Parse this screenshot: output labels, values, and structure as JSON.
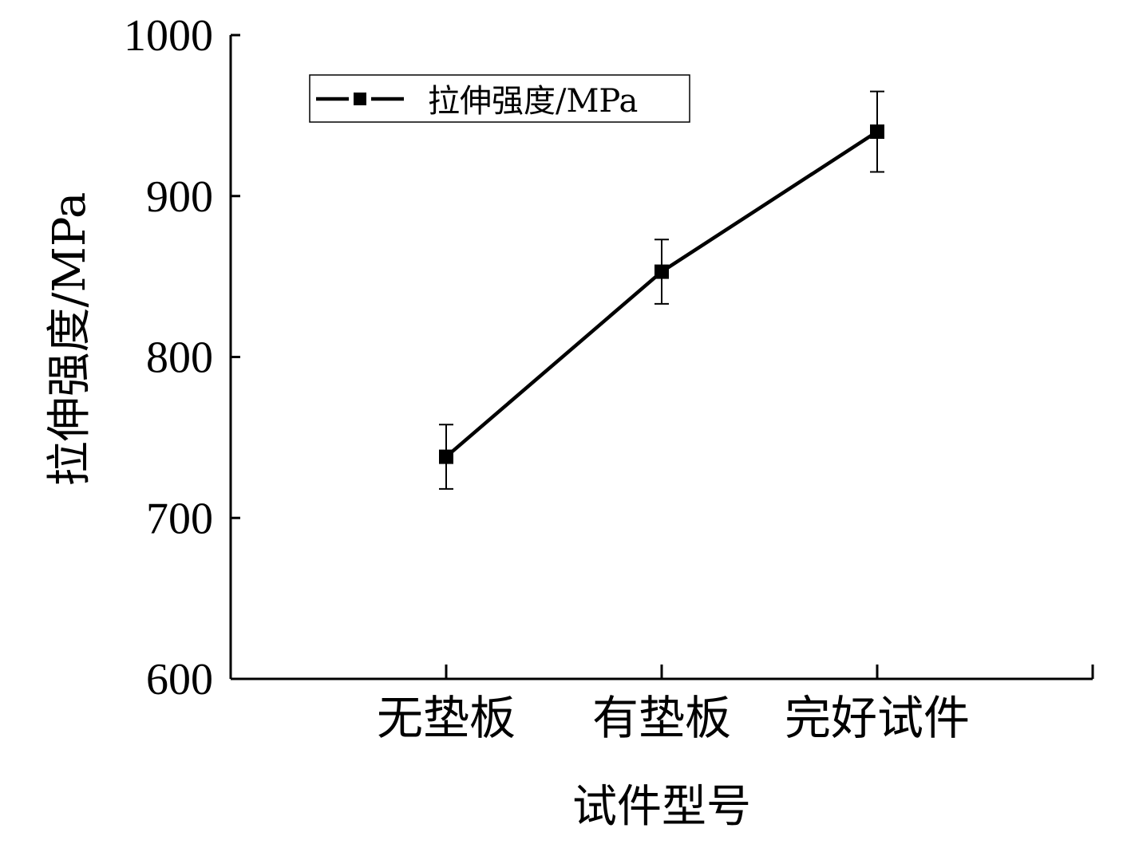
{
  "chart_data": {
    "type": "line",
    "categories": [
      "无垫板",
      "有垫板",
      "完好试件"
    ],
    "series": [
      {
        "name": "拉伸强度/MPa",
        "values": [
          738,
          853,
          940
        ],
        "error": [
          20,
          20,
          25
        ],
        "color": "#000000",
        "marker": "square"
      }
    ],
    "xlabel": "试件型号",
    "ylabel": "拉伸强度/MPa",
    "ylim": [
      600,
      1000
    ],
    "yticks": [
      600,
      700,
      800,
      900,
      1000
    ],
    "grid": false,
    "legend": "top-left"
  }
}
